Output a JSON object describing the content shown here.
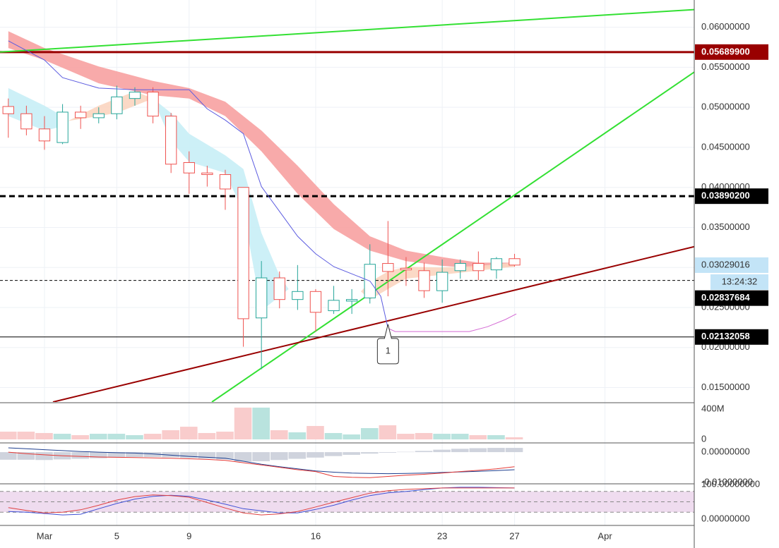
{
  "chart_data": [
    {
      "type": "candlestick",
      "x": [
        -2,
        -1,
        0,
        1,
        2,
        3,
        4,
        5,
        6,
        7,
        8,
        9,
        10,
        11,
        12,
        13,
        14,
        15,
        16,
        17,
        18,
        19,
        20,
        21,
        22,
        23,
        24,
        25,
        26
      ],
      "open": [
        0.0501,
        0.0492,
        0.0473,
        0.0456,
        0.0494,
        0.0487,
        0.0492,
        0.0511,
        0.0519,
        0.0489,
        0.0431,
        0.0418,
        0.0416,
        0.04,
        0.0237,
        0.0287,
        0.026,
        0.027,
        0.0246,
        0.0258,
        0.0262,
        0.0305,
        0.0299,
        0.0296,
        0.0271,
        0.0296,
        0.0305,
        0.0297,
        0.0311
      ],
      "high": [
        0.0511,
        0.0502,
        0.0489,
        0.0504,
        0.0502,
        0.05,
        0.0527,
        0.0525,
        0.0525,
        0.0493,
        0.0445,
        0.0427,
        0.0422,
        0.04,
        0.0308,
        0.0295,
        0.0303,
        0.0273,
        0.0277,
        0.0273,
        0.0329,
        0.0358,
        0.0313,
        0.0306,
        0.031,
        0.031,
        0.032,
        0.0313,
        0.0317
      ],
      "low": [
        0.0462,
        0.0465,
        0.0447,
        0.0454,
        0.0473,
        0.048,
        0.0485,
        0.0502,
        0.048,
        0.0418,
        0.0392,
        0.0401,
        0.0372,
        0.0201,
        0.0173,
        0.0249,
        0.0247,
        0.022,
        0.0242,
        0.0242,
        0.0255,
        0.0264,
        0.0277,
        0.0262,
        0.0256,
        0.0286,
        0.0284,
        0.0286,
        0.0301
      ],
      "close": [
        0.0492,
        0.0473,
        0.0458,
        0.0494,
        0.0487,
        0.0492,
        0.0513,
        0.0519,
        0.0489,
        0.0429,
        0.0418,
        0.0416,
        0.0398,
        0.0236,
        0.0287,
        0.026,
        0.027,
        0.0244,
        0.0259,
        0.026,
        0.0304,
        0.0295,
        0.0297,
        0.0271,
        0.0294,
        0.0305,
        0.0296,
        0.0311,
        0.0303
      ],
      "up_color": "#26a69a",
      "down_color": "#ef5350",
      "xlim": [
        -2.46,
        35.94
      ],
      "xticks": [
        {
          "value": 0,
          "label": "Mar"
        },
        {
          "value": 4,
          "label": "5"
        },
        {
          "value": 8,
          "label": "9"
        },
        {
          "value": 15,
          "label": "16"
        },
        {
          "value": 22,
          "label": "23"
        },
        {
          "value": 26,
          "label": "27"
        },
        {
          "value": 31,
          "label": "Apr"
        }
      ],
      "ylim": [
        0.0132,
        0.0634
      ],
      "yticks": [
        {
          "value": 0.06,
          "label": "0.06000000"
        },
        {
          "value": 0.055,
          "label": "0.05500000"
        },
        {
          "value": 0.05,
          "label": "0.05000000"
        },
        {
          "value": 0.045,
          "label": "0.04500000"
        },
        {
          "value": 0.04,
          "label": "0.04000000"
        },
        {
          "value": 0.035,
          "label": "0.03500000"
        },
        {
          "value": 0.03,
          "label": "0.03000000"
        },
        {
          "value": 0.025,
          "label": "0.02500000"
        },
        {
          "value": 0.02,
          "label": "0.02000000"
        },
        {
          "value": 0.015,
          "label": "0.01500000"
        }
      ],
      "grid": true,
      "ribbons": [
        {
          "color": "#f7a1a1",
          "x": [
            -2,
            0,
            3,
            6,
            8,
            10,
            12,
            14,
            16,
            18,
            20,
            22,
            24,
            26
          ],
          "upper": [
            0.0595,
            0.0574,
            0.0551,
            0.0533,
            0.0524,
            0.0507,
            0.0471,
            0.0427,
            0.0379,
            0.0339,
            0.0321,
            0.0313,
            0.0306,
            0.0306
          ],
          "lower": [
            0.0574,
            0.0559,
            0.053,
            0.0515,
            0.0511,
            0.0489,
            0.0445,
            0.0392,
            0.0348,
            0.0321,
            0.0308,
            0.0302,
            0.0299,
            0.0301
          ]
        },
        {
          "color": "#c8eef6",
          "x": [
            -2,
            0,
            1,
            1.3
          ],
          "upper": [
            0.0524,
            0.0502,
            0.0489,
            0.0483
          ],
          "lower": [
            0.0489,
            0.0471,
            0.0476,
            0.0483
          ]
        },
        {
          "color": "#fbd5c0",
          "x": [
            1.3,
            3,
            4,
            5,
            6
          ],
          "upper": [
            0.0483,
            0.0502,
            0.0511,
            0.052,
            0.0511
          ],
          "lower": [
            0.0483,
            0.0489,
            0.0493,
            0.0502,
            0.0511
          ]
        },
        {
          "color": "#c8eef6",
          "x": [
            6,
            7,
            8,
            10,
            11,
            12,
            13,
            13.5
          ],
          "upper": [
            0.0511,
            0.0493,
            0.0467,
            0.044,
            0.0423,
            0.0343,
            0.029,
            0.0273
          ],
          "lower": [
            0.0511,
            0.0458,
            0.0432,
            0.0418,
            0.037,
            0.0246,
            0.0264,
            0.0273
          ]
        },
        {
          "color": "#fbd5c0",
          "x": [
            17.5,
            18,
            19,
            20,
            22,
            24,
            26
          ],
          "upper": [
            0.027,
            0.0282,
            0.0295,
            0.0301,
            0.03,
            0.0302,
            0.0306
          ],
          "lower": [
            0.027,
            0.026,
            0.0273,
            0.0286,
            0.0291,
            0.0296,
            0.0301
          ]
        }
      ],
      "lines": [
        {
          "color": "#5c5ce0",
          "x": [
            -2,
            0,
            1,
            3,
            5,
            7,
            8,
            9,
            10,
            11,
            12,
            13,
            14,
            15,
            16,
            17,
            18,
            18.6,
            19
          ],
          "values": [
            0.0583,
            0.0559,
            0.0537,
            0.0524,
            0.0522,
            0.0522,
            0.0522,
            0.0498,
            0.0484,
            0.0467,
            0.0401,
            0.037,
            0.0339,
            0.0317,
            0.0301,
            0.0292,
            0.0283,
            0.0264,
            0.0224
          ]
        },
        {
          "color": "#d46ad4",
          "x": [
            19,
            19.4,
            23.5,
            24.5,
            25.5,
            26.1
          ],
          "values": [
            0.0224,
            0.022,
            0.022,
            0.0226,
            0.0235,
            0.0242
          ]
        }
      ],
      "trendlines": [
        {
          "color": "#33e033",
          "x": [
            -2.46,
            35.94
          ],
          "values": [
            0.0569,
            0.0622
          ]
        },
        {
          "color": "#33e033",
          "x": [
            9.26,
            35.94
          ],
          "values": [
            0.0132,
            0.0544
          ]
        },
        {
          "color": "#990000",
          "x": [
            0.47,
            35.94
          ],
          "values": [
            0.0132,
            0.0326
          ]
        }
      ],
      "price_lines": [
        {
          "value": 0.056899,
          "label": "0.05689900",
          "color": "#990000",
          "style": "solid",
          "width": 3
        },
        {
          "value": 0.038902,
          "label": "0.03890200",
          "color": "#000000",
          "style": "dashed",
          "width": 3
        },
        {
          "value": 0.02837684,
          "label": "0.02837684",
          "color": "#000000",
          "style": "dashed",
          "width": 1
        },
        {
          "value": 0.02132058,
          "label": "0.02132058",
          "color": "#000000",
          "style": "solid",
          "width": 1
        }
      ],
      "last_price": {
        "value": 0.03029016,
        "label": "0.03029016",
        "countdown": "13:24:32",
        "color": "#c3e4f7"
      },
      "annotations": [
        {
          "label": "1",
          "x": 19,
          "y": 0.0229
        }
      ]
    },
    {
      "type": "bar",
      "values": [
        102000000,
        102000000,
        84000000,
        74000000,
        56000000,
        74000000,
        74000000,
        56000000,
        74000000,
        121000000,
        167000000,
        84000000,
        102000000,
        419000000,
        419000000,
        121000000,
        93000000,
        177000000,
        84000000,
        65000000,
        149000000,
        186000000,
        74000000,
        84000000,
        74000000,
        74000000,
        56000000,
        56000000,
        28000000
      ],
      "up_color": "#b9e3de",
      "down_color": "#f9cccc",
      "ylim": [
        -37000000,
        474000000
      ],
      "yticks": [
        {
          "value": 400000000,
          "label": "400M"
        },
        0
      ]
    },
    {
      "type": "macd",
      "histogram": [
        -0.0025,
        -0.0025,
        -0.0026,
        -0.0024,
        -0.0022,
        -0.002,
        -0.0018,
        -0.0016,
        -0.0016,
        -0.0017,
        -0.0019,
        -0.0021,
        -0.0024,
        -0.0031,
        -0.003,
        -0.0026,
        -0.0022,
        -0.0018,
        -0.0013,
        -0.0009,
        -0.0005,
        -0.0002,
        0.0001,
        0.0004,
        0.0008,
        0.0011,
        0.0013,
        0.0014,
        0.0014
      ],
      "histogram_color": "#cfd3dd",
      "series": [
        {
          "color": "#1e3f8f",
          "values": [
            0.0014,
            0.0011,
            0.0008,
            0.0005,
            0.0002,
            0.0,
            -0.0002,
            -0.0003,
            -0.0006,
            -0.001,
            -0.0014,
            -0.0017,
            -0.002,
            -0.003,
            -0.004,
            -0.0048,
            -0.0055,
            -0.0062,
            -0.0066,
            -0.0069,
            -0.007,
            -0.0071,
            -0.007,
            -0.0069,
            -0.0067,
            -0.0065,
            -0.0063,
            -0.0061,
            -0.0058
          ]
        },
        {
          "color": "#e53935",
          "values": [
            0.0,
            -0.0005,
            -0.0009,
            -0.0012,
            -0.0014,
            -0.0016,
            -0.0017,
            -0.0018,
            -0.0019,
            -0.002,
            -0.0022,
            -0.0024,
            -0.0027,
            -0.0035,
            -0.0042,
            -0.005,
            -0.0058,
            -0.0064,
            -0.008,
            -0.0083,
            -0.0084,
            -0.008,
            -0.0076,
            -0.0073,
            -0.0069,
            -0.0064,
            -0.006,
            -0.0055,
            -0.0048
          ]
        }
      ],
      "ylim": [
        -0.0102,
        0.0028
      ],
      "yticks": [
        {
          "value": 0,
          "label": "0.00000000"
        },
        {
          "value": -0.01,
          "label": "-0.01000000"
        }
      ]
    },
    {
      "type": "line",
      "series": [
        {
          "color": "#3f51d6",
          "values": [
            22,
            20,
            16,
            12,
            14,
            30,
            45,
            58,
            66,
            69,
            66,
            55,
            43,
            30,
            24,
            18,
            18,
            28,
            40,
            55,
            68,
            76,
            80,
            85,
            90,
            92,
            92,
            91,
            90
          ]
        },
        {
          "color": "#e04040",
          "values": [
            33,
            25,
            18,
            20,
            27,
            40,
            55,
            65,
            70,
            68,
            63,
            48,
            32,
            18,
            12,
            15,
            22,
            35,
            49,
            62,
            75,
            82,
            86,
            88,
            90,
            90,
            90,
            90,
            90
          ]
        }
      ],
      "levels": [
        80,
        50,
        20
      ],
      "band_color": "#efdcef",
      "ylim": [
        -18.4,
        100
      ],
      "yticks": [
        {
          "value": 100,
          "label": "100.00000000"
        },
        {
          "value": 0,
          "label": "0.00000000"
        }
      ]
    }
  ]
}
